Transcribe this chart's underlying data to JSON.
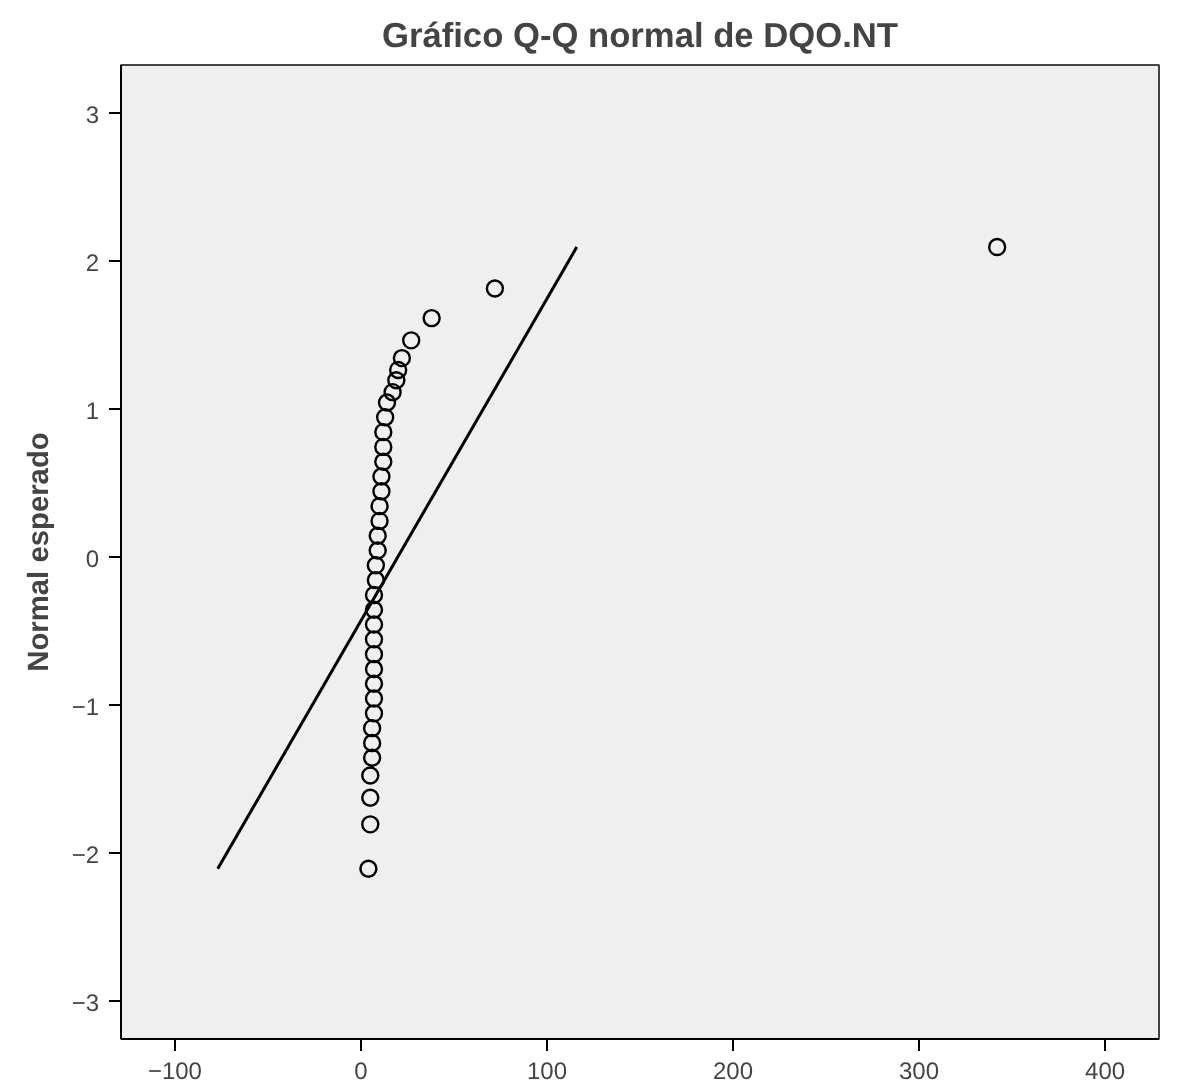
{
  "chart_data": {
    "type": "scatter",
    "title": "Gráfico Q-Q normal de DQO.NT",
    "ylabel": "Normal esperado",
    "xlim": [
      -129,
      429
    ],
    "ylim": [
      -3.25,
      3.33
    ],
    "xticks": [
      -100,
      0,
      100,
      200,
      300,
      400
    ],
    "yticks": [
      -3,
      -2,
      -1,
      0,
      1,
      2,
      3
    ],
    "grid": false,
    "series": [
      {
        "marker": "circle",
        "color": "#000000",
        "x": [
          4,
          5,
          5,
          5,
          6,
          6,
          6,
          7,
          7,
          7,
          7,
          7,
          7,
          7,
          7,
          7,
          8,
          8,
          9,
          9,
          10,
          10,
          11,
          11,
          12,
          12,
          12,
          13,
          14,
          17,
          19,
          20,
          22,
          27,
          38,
          72,
          342
        ],
        "values": [
          -2.1,
          -1.8,
          -1.62,
          -1.47,
          -1.35,
          -1.25,
          -1.15,
          -1.05,
          -0.95,
          -0.85,
          -0.75,
          -0.65,
          -0.55,
          -0.45,
          -0.35,
          -0.25,
          -0.15,
          -0.05,
          0.05,
          0.15,
          0.25,
          0.35,
          0.45,
          0.55,
          0.65,
          0.75,
          0.85,
          0.95,
          1.05,
          1.12,
          1.2,
          1.27,
          1.35,
          1.47,
          1.62,
          1.82,
          2.1
        ]
      },
      {
        "type": "line",
        "color": "#000000",
        "x": [
          -77,
          116
        ],
        "values": [
          -2.1,
          2.1
        ]
      }
    ]
  }
}
